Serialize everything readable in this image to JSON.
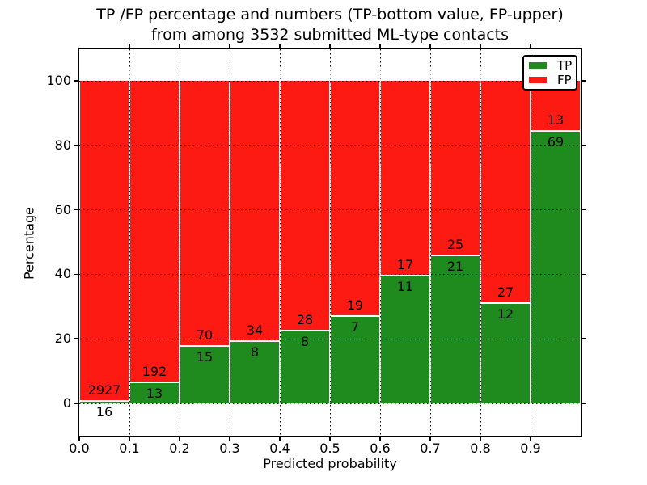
{
  "title": {
    "line1": "TP /FP percentage and numbers (TP-bottom value, FP-upper)",
    "line2": "from among 3532 submitted ML-type contacts"
  },
  "chart_data": {
    "type": "bar",
    "variant": "stacked-percentage",
    "title": "TP /FP percentage and numbers (TP-bottom value, FP-upper) from among 3532 submitted ML-type contacts",
    "xlabel": "Predicted probability",
    "ylabel": "Percentage",
    "total_contacts": 3532,
    "xlim": [
      0.0,
      1.0
    ],
    "ylim": [
      -10,
      110
    ],
    "x_ticks": [
      "0.0",
      "0.1",
      "0.2",
      "0.3",
      "0.4",
      "0.5",
      "0.6",
      "0.7",
      "0.8",
      "0.9"
    ],
    "y_ticks": [
      0,
      20,
      40,
      60,
      80,
      100
    ],
    "grid": "dotted-black-over-bars",
    "colors": {
      "tp": "#1f8b1f",
      "fp": "#fd1a13"
    },
    "legend": {
      "position": "upper-right",
      "entries": [
        {
          "label": "TP",
          "color_key": "tp"
        },
        {
          "label": "FP",
          "color_key": "fp"
        }
      ]
    },
    "bins": [
      {
        "range": [
          0.0,
          0.1
        ],
        "tp_count": 16,
        "fp_count": 2927,
        "tp_pct": 0.54,
        "fp_pct": 99.46
      },
      {
        "range": [
          0.1,
          0.2
        ],
        "tp_count": 13,
        "fp_count": 192,
        "tp_pct": 6.34,
        "fp_pct": 93.66
      },
      {
        "range": [
          0.2,
          0.3
        ],
        "tp_count": 15,
        "fp_count": 70,
        "tp_pct": 17.65,
        "fp_pct": 82.35
      },
      {
        "range": [
          0.3,
          0.4
        ],
        "tp_count": 8,
        "fp_count": 34,
        "tp_pct": 19.05,
        "fp_pct": 80.95
      },
      {
        "range": [
          0.4,
          0.5
        ],
        "tp_count": 8,
        "fp_count": 28,
        "tp_pct": 22.22,
        "fp_pct": 77.78
      },
      {
        "range": [
          0.5,
          0.6
        ],
        "tp_count": 7,
        "fp_count": 19,
        "tp_pct": 26.92,
        "fp_pct": 73.08
      },
      {
        "range": [
          0.6,
          0.7
        ],
        "tp_count": 11,
        "fp_count": 17,
        "tp_pct": 39.29,
        "fp_pct": 60.71
      },
      {
        "range": [
          0.7,
          0.8
        ],
        "tp_count": 21,
        "fp_count": 25,
        "tp_pct": 45.65,
        "fp_pct": 54.35
      },
      {
        "range": [
          0.8,
          0.9
        ],
        "tp_count": 12,
        "fp_count": 27,
        "tp_pct": 30.77,
        "fp_pct": 69.23
      },
      {
        "range": [
          0.9,
          1.0
        ],
        "tp_count": 69,
        "fp_count": 13,
        "tp_pct": 84.15,
        "fp_pct": 15.85
      }
    ]
  }
}
